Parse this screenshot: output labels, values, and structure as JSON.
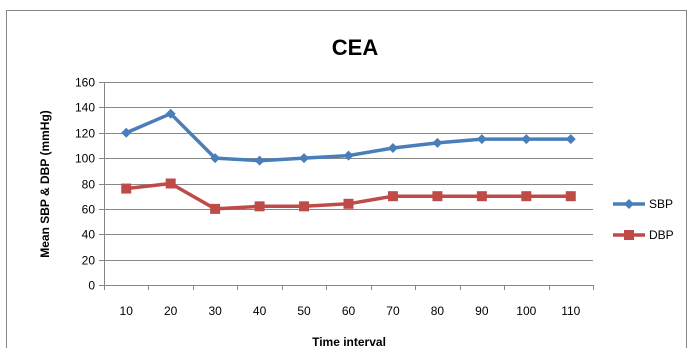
{
  "colors": {
    "sbp": "#4a7ebb",
    "dbp": "#be4b48",
    "gridline": "#878787",
    "axis": "#868686",
    "text": "#000000",
    "frame": "#868686"
  },
  "chart_data": {
    "type": "line",
    "title": "CEA",
    "xlabel": "Time interval",
    "ylabel": "Mean SBP & DBP (mmHg)",
    "categories": [
      "10",
      "20",
      "30",
      "40",
      "50",
      "60",
      "70",
      "80",
      "90",
      "100",
      "110"
    ],
    "ylim": [
      0,
      160
    ],
    "yticks": [
      0,
      20,
      40,
      60,
      80,
      100,
      120,
      140,
      160
    ],
    "grid": true,
    "legend_position": "right",
    "series": [
      {
        "name": "SBP",
        "marker": "diamond",
        "values": [
          120,
          135,
          100,
          98,
          100,
          102,
          108,
          112,
          115,
          115,
          115
        ]
      },
      {
        "name": "DBP",
        "marker": "square",
        "values": [
          76,
          80,
          60,
          62,
          62,
          64,
          70,
          70,
          70,
          70,
          70
        ]
      }
    ]
  }
}
